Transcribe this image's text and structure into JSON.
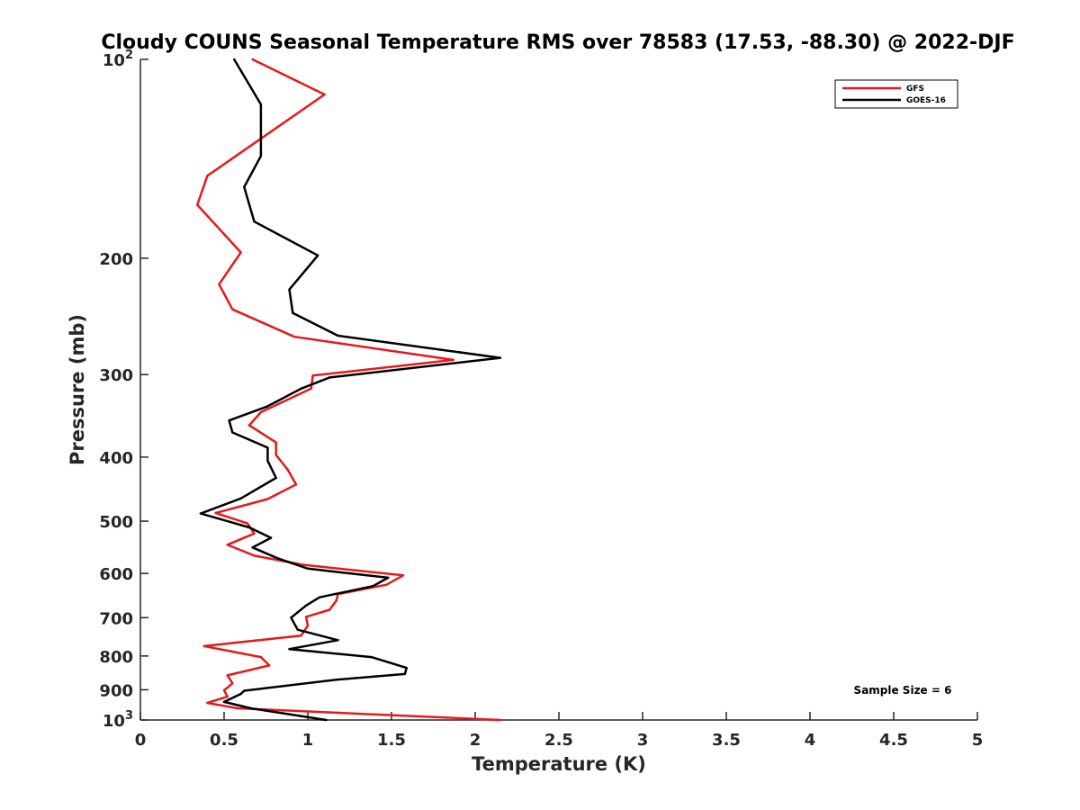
{
  "chart_data": {
    "type": "line",
    "title": "Cloudy COUNS Seasonal Temperature RMS over 78583 (17.53, -88.30) @ 2022-DJF",
    "xlabel": "Temperature (K)",
    "ylabel": "Pressure (mb)",
    "xlim": [
      0,
      5
    ],
    "ylim": [
      100,
      1000
    ],
    "y_scale": "log",
    "y_reversed": true,
    "grid": false,
    "legend_position": "top-right",
    "x_ticks": [
      {
        "value": 0,
        "label": "0"
      },
      {
        "value": 0.5,
        "label": "0.5"
      },
      {
        "value": 1,
        "label": "1"
      },
      {
        "value": 1.5,
        "label": "1.5"
      },
      {
        "value": 2,
        "label": "2"
      },
      {
        "value": 2.5,
        "label": "2.5"
      },
      {
        "value": 3,
        "label": "3"
      },
      {
        "value": 3.5,
        "label": "3.5"
      },
      {
        "value": 4,
        "label": "4"
      },
      {
        "value": 4.5,
        "label": "4.5"
      },
      {
        "value": 5,
        "label": "5"
      }
    ],
    "y_ticks": [
      {
        "value": 100,
        "base": "10",
        "exp": "2"
      },
      {
        "value": 200,
        "label": "200"
      },
      {
        "value": 300,
        "label": "300"
      },
      {
        "value": 400,
        "label": "400"
      },
      {
        "value": 500,
        "label": "500"
      },
      {
        "value": 600,
        "label": "600"
      },
      {
        "value": 700,
        "label": "700"
      },
      {
        "value": 800,
        "label": "800"
      },
      {
        "value": 900,
        "label": "900"
      },
      {
        "value": 1000,
        "base": "10",
        "exp": "3"
      }
    ],
    "annotation": "Sample Size = 6",
    "series": [
      {
        "name": "GFS",
        "color": "#e41a1c",
        "points": [
          [
            0.67,
            100
          ],
          [
            1.1,
            113
          ],
          [
            0.4,
            150
          ],
          [
            0.34,
            166
          ],
          [
            0.6,
            196
          ],
          [
            0.47,
            219
          ],
          [
            0.55,
            239
          ],
          [
            0.92,
            263
          ],
          [
            1.87,
            285
          ],
          [
            1.03,
            301
          ],
          [
            1.02,
            315
          ],
          [
            0.72,
            342
          ],
          [
            0.65,
            358
          ],
          [
            0.81,
            380
          ],
          [
            0.81,
            397
          ],
          [
            0.88,
            418
          ],
          [
            0.93,
            440
          ],
          [
            0.76,
            463
          ],
          [
            0.45,
            486
          ],
          [
            0.64,
            504
          ],
          [
            0.68,
            522
          ],
          [
            0.52,
            543
          ],
          [
            0.68,
            564
          ],
          [
            0.97,
            582
          ],
          [
            1.57,
            604
          ],
          [
            1.47,
            624
          ],
          [
            1.18,
            645
          ],
          [
            1.17,
            660
          ],
          [
            1.13,
            681
          ],
          [
            0.99,
            698
          ],
          [
            1.0,
            720
          ],
          [
            0.96,
            745
          ],
          [
            0.38,
            773
          ],
          [
            0.72,
            803
          ],
          [
            0.77,
            827
          ],
          [
            0.52,
            856
          ],
          [
            0.55,
            880
          ],
          [
            0.5,
            902
          ],
          [
            0.52,
            922
          ],
          [
            0.4,
            942
          ],
          [
            0.58,
            960
          ],
          [
            2.15,
            1000
          ]
        ]
      },
      {
        "name": "GOES-16",
        "color": "#000000",
        "points": [
          [
            0.56,
            100
          ],
          [
            0.72,
            117
          ],
          [
            0.72,
            140
          ],
          [
            0.62,
            156
          ],
          [
            0.68,
            176
          ],
          [
            1.06,
            198
          ],
          [
            0.89,
            223
          ],
          [
            0.91,
            242
          ],
          [
            1.18,
            262
          ],
          [
            2.15,
            283
          ],
          [
            1.13,
            303
          ],
          [
            0.96,
            315
          ],
          [
            0.76,
            335
          ],
          [
            0.53,
            352
          ],
          [
            0.55,
            367
          ],
          [
            0.76,
            387
          ],
          [
            0.76,
            405
          ],
          [
            0.81,
            430
          ],
          [
            0.6,
            462
          ],
          [
            0.36,
            487
          ],
          [
            0.65,
            511
          ],
          [
            0.78,
            530
          ],
          [
            0.67,
            548
          ],
          [
            0.82,
            569
          ],
          [
            1.0,
            590
          ],
          [
            1.48,
            609
          ],
          [
            1.39,
            627
          ],
          [
            1.07,
            652
          ],
          [
            0.99,
            671
          ],
          [
            0.9,
            700
          ],
          [
            0.94,
            730
          ],
          [
            1.18,
            757
          ],
          [
            0.89,
            781
          ],
          [
            1.38,
            803
          ],
          [
            1.59,
            834
          ],
          [
            1.58,
            852
          ],
          [
            1.17,
            869
          ],
          [
            0.62,
            903
          ],
          [
            0.6,
            913
          ],
          [
            0.5,
            939
          ],
          [
            0.66,
            960
          ],
          [
            1.11,
            1000
          ]
        ]
      }
    ]
  }
}
